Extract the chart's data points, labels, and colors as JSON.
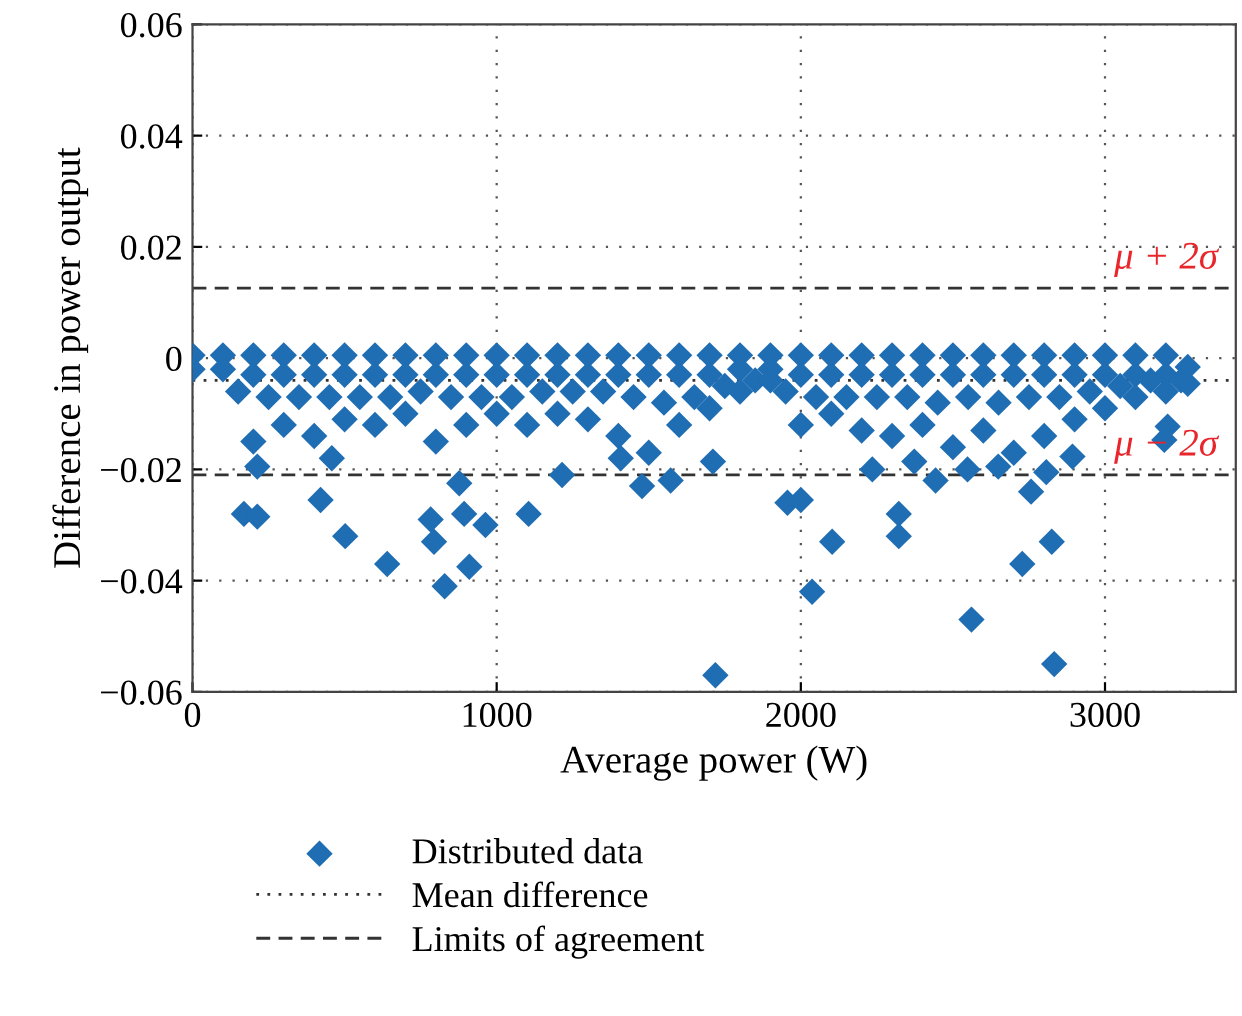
{
  "chart_data": {
    "type": "scatter",
    "xlabel": "Average power (W)",
    "ylabel": "Difference in power output",
    "xlim": [
      0,
      3430
    ],
    "ylim": [
      -0.06,
      0.06
    ],
    "xticks": [
      0,
      1000,
      2000,
      3000
    ],
    "yticks": [
      {
        "value": -0.06,
        "label": "−0.06"
      },
      {
        "value": -0.04,
        "label": "−0.04"
      },
      {
        "value": -0.02,
        "label": "−0.02"
      },
      0,
      0.02,
      0.04,
      0.06
    ],
    "grid": true,
    "legend": "bottom",
    "annotations": [
      {
        "text": "μ + 2σ",
        "x": 3030,
        "y": 0.0126
      },
      {
        "text": "μ − 2σ",
        "x": 3030,
        "y": -0.021
      }
    ],
    "series": [
      {
        "name": "Distributed data",
        "marker": "diamond",
        "color": "#1f6db3",
        "x": [
          0,
          100,
          200,
          300,
          400,
          500,
          600,
          700,
          800,
          900,
          1000,
          1100,
          1200,
          1300,
          1400,
          1500,
          1600,
          1700,
          1800,
          1900,
          2000,
          2100,
          2200,
          2300,
          2400,
          2500,
          2600,
          2700,
          2800,
          2900,
          3000,
          3100,
          3200,
          0,
          100,
          200,
          300,
          400,
          500,
          600,
          700,
          800,
          900,
          1000,
          1100,
          1200,
          1300,
          1400,
          1500,
          1600,
          1700,
          1800,
          1900,
          2000,
          2100,
          2200,
          2300,
          2400,
          2500,
          2600,
          2700,
          2800,
          2900,
          3000,
          3100,
          3200,
          150,
          250,
          350,
          450,
          550,
          650,
          750,
          850,
          950,
          1050,
          1150,
          1250,
          1350,
          1450,
          1550,
          1650,
          1750,
          1850,
          1950,
          2050,
          2150,
          2250,
          2350,
          2450,
          2550,
          2650,
          2750,
          2850,
          2950,
          3050,
          3150,
          3250,
          200,
          300,
          400,
          500,
          600,
          700,
          800,
          900,
          1000,
          1100,
          1200,
          1300,
          1400,
          1500,
          1600,
          1700,
          1800,
          1900,
          2000,
          2100,
          2200,
          2300,
          2400,
          2500,
          2600,
          2700,
          2800,
          2900,
          3000,
          3100,
          3200,
          169,
          213,
          421,
          502,
          640,
          783,
          794,
          829,
          893,
          910,
          963,
          1105,
          1215,
          458,
          877,
          1478,
          1572,
          1408,
          213,
          1719,
          1711,
          1956,
          2000,
          2037,
          2103,
          2235,
          2322,
          2322,
          2373,
          2443,
          2561,
          2548,
          2649,
          2728,
          2757,
          2825,
          2833,
          2807,
          2893,
          3195,
          3206,
          3272,
          3272
        ],
        "values": [
          0.0005,
          0.0005,
          0.0005,
          0.0005,
          0.0005,
          0.0005,
          0.0005,
          0.0005,
          0.0005,
          0.0005,
          0.0005,
          0.0005,
          0.0005,
          0.0005,
          0.0005,
          0.0005,
          0.0005,
          0.0005,
          0.0005,
          0.0005,
          0.0005,
          0.0005,
          0.0005,
          0.0005,
          0.0005,
          0.0005,
          0.0005,
          0.0005,
          0.0005,
          0.0005,
          0.0005,
          0.0005,
          0.0005,
          -0.002,
          -0.002,
          -0.003,
          -0.003,
          -0.003,
          -0.003,
          -0.003,
          -0.003,
          -0.003,
          -0.003,
          -0.003,
          -0.003,
          -0.003,
          -0.003,
          -0.003,
          -0.003,
          -0.003,
          -0.003,
          -0.002,
          -0.002,
          -0.003,
          -0.003,
          -0.003,
          -0.003,
          -0.003,
          -0.003,
          -0.003,
          -0.003,
          -0.003,
          -0.003,
          -0.003,
          -0.003,
          -0.003,
          -0.006,
          -0.007,
          -0.007,
          -0.007,
          -0.007,
          -0.007,
          -0.006,
          -0.007,
          -0.007,
          -0.007,
          -0.006,
          -0.006,
          -0.006,
          -0.007,
          -0.008,
          -0.007,
          -0.005,
          -0.004,
          -0.006,
          -0.007,
          -0.007,
          -0.007,
          -0.007,
          -0.008,
          -0.007,
          -0.008,
          -0.007,
          -0.007,
          -0.006,
          -0.005,
          -0.004,
          -0.004,
          -0.015,
          -0.012,
          -0.014,
          -0.011,
          -0.012,
          -0.01,
          -0.015,
          -0.012,
          -0.01,
          -0.012,
          -0.01,
          -0.011,
          -0.014,
          -0.017,
          -0.012,
          -0.009,
          -0.006,
          -0.004,
          -0.012,
          -0.01,
          -0.013,
          -0.014,
          -0.012,
          -0.016,
          -0.013,
          -0.017,
          -0.014,
          -0.011,
          -0.009,
          -0.007,
          -0.006,
          -0.028,
          -0.0285,
          -0.0255,
          -0.032,
          -0.037,
          -0.029,
          -0.033,
          -0.041,
          -0.028,
          -0.0375,
          -0.03,
          -0.028,
          -0.021,
          -0.018,
          -0.0225,
          -0.023,
          -0.022,
          -0.018,
          -0.0195,
          -0.057,
          -0.0186,
          -0.026,
          -0.0255,
          -0.042,
          -0.033,
          -0.02,
          -0.028,
          -0.032,
          -0.0186,
          -0.022,
          -0.047,
          -0.02,
          -0.0195,
          -0.037,
          -0.024,
          -0.033,
          -0.055,
          -0.0205,
          -0.0177,
          -0.0147,
          -0.0123,
          -0.0046,
          -0.0016
        ]
      },
      {
        "name": "Mean difference",
        "type": "line",
        "line_style": "dotted",
        "color": "#333333",
        "x": [
          0,
          3430
        ],
        "values": [
          -0.004,
          -0.004
        ]
      },
      {
        "name": "Limits of agreement",
        "type": "line",
        "line_style": "dashed",
        "color": "#333333",
        "x": [
          0,
          3430
        ],
        "values": [
          0.0126,
          0.0126
        ]
      },
      {
        "type": "line",
        "line_style": "dashed",
        "color": "#333333",
        "x": [
          0,
          3430
        ],
        "values": [
          -0.021,
          -0.021
        ]
      }
    ]
  }
}
